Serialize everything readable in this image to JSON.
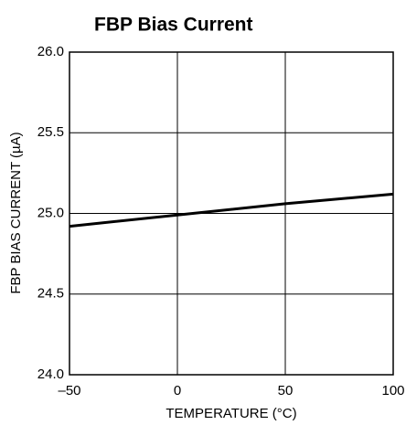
{
  "chart_data": {
    "type": "line",
    "title": "FBP Bias Current",
    "xlabel": "TEMPERATURE (°C)",
    "ylabel": "FBP BIAS CURRENT (µA)",
    "x": [
      -50,
      0,
      50,
      100
    ],
    "series": [
      {
        "name": null,
        "color": "#000000",
        "values": [
          24.92,
          24.99,
          25.06,
          25.12
        ]
      }
    ],
    "xlim": [
      -50,
      100
    ],
    "xticks": [
      {
        "value": -50,
        "label": "–50"
      },
      0,
      50,
      100
    ],
    "ylim": [
      24,
      26
    ],
    "yticks": [
      {
        "value": 24,
        "label": "24.0"
      },
      24.5,
      {
        "value": 25,
        "label": "25.0"
      },
      25.5,
      {
        "value": 26,
        "label": "26.0"
      }
    ],
    "grid": true
  }
}
